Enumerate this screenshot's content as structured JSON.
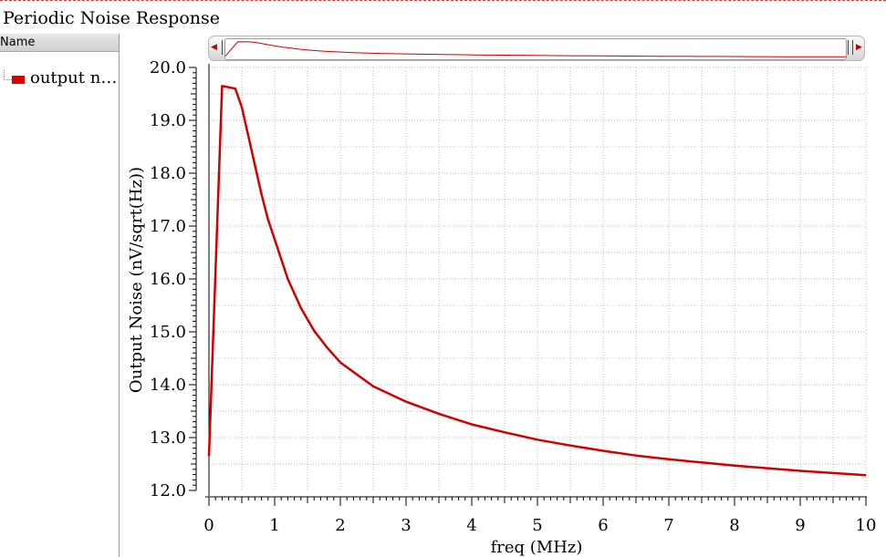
{
  "window": {
    "title": "Periodic Noise Response"
  },
  "sidebar": {
    "header": "Name",
    "items": [
      {
        "label": "output no…",
        "color": "#e00000"
      }
    ]
  },
  "colors": {
    "trace": "#d00000",
    "grid": "#b8b8b8",
    "accent_dash": "#d04040"
  },
  "chart_data": {
    "type": "line",
    "title": "",
    "xlabel": "freq (MHz)",
    "ylabel": "Output Noise (nV/sqrt(Hz))",
    "xlim": [
      0,
      10
    ],
    "ylim": [
      12.0,
      20.0
    ],
    "grid": true,
    "x_ticks": [
      "0",
      "1",
      "2",
      "3",
      "4",
      "5",
      "6",
      "7",
      "8",
      "9",
      "10"
    ],
    "y_ticks": [
      "12.0",
      "13.0",
      "14.0",
      "15.0",
      "16.0",
      "17.0",
      "18.0",
      "19.0",
      "20.0"
    ],
    "series": [
      {
        "name": "output no…",
        "color": "#d00000",
        "x": [
          0.0,
          0.2,
          0.4,
          0.5,
          0.6,
          0.7,
          0.8,
          0.9,
          1.0,
          1.2,
          1.4,
          1.6,
          1.8,
          2.0,
          2.5,
          3.0,
          3.5,
          4.0,
          4.5,
          5.0,
          5.5,
          6.0,
          6.5,
          7.0,
          7.5,
          8.0,
          8.5,
          9.0,
          9.5,
          10.0
        ],
        "y": [
          12.65,
          19.65,
          19.6,
          19.25,
          18.7,
          18.15,
          17.6,
          17.12,
          16.75,
          16.0,
          15.45,
          15.02,
          14.7,
          14.42,
          13.97,
          13.68,
          13.45,
          13.25,
          13.1,
          12.96,
          12.85,
          12.75,
          12.66,
          12.59,
          12.53,
          12.47,
          12.42,
          12.37,
          12.33,
          12.29
        ]
      }
    ]
  }
}
